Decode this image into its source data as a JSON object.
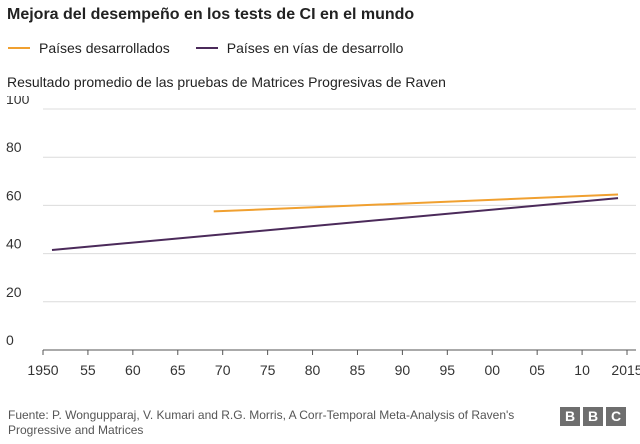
{
  "chart_data": {
    "type": "line",
    "title": "Mejora del desempeño en los tests de CI en el mundo",
    "subtitle": "Resultado promedio de las pruebas de Matrices Progresivas de Raven",
    "xlabel": "",
    "ylabel": "",
    "xlim": [
      1950,
      2016
    ],
    "ylim": [
      0,
      100
    ],
    "x_ticks": [
      1950,
      1955,
      1960,
      1965,
      1970,
      1975,
      1980,
      1985,
      1990,
      1995,
      2000,
      2005,
      2010,
      2015
    ],
    "x_tick_labels": [
      "1950",
      "55",
      "60",
      "65",
      "70",
      "75",
      "80",
      "85",
      "90",
      "95",
      "00",
      "05",
      "10",
      "2015"
    ],
    "y_ticks": [
      0,
      20,
      40,
      60,
      80,
      100
    ],
    "y_tick_labels": [
      "0",
      "20",
      "40",
      "60",
      "80",
      "100"
    ],
    "grid": "horizontal",
    "legend_position": "top-left",
    "series": [
      {
        "name": "Países desarrollados",
        "color": "#f0a030",
        "x": [
          1969,
          2014
        ],
        "values": [
          57.5,
          64.5
        ]
      },
      {
        "name": "Países en vías de desarrollo",
        "color": "#4b2a5a",
        "x": [
          1951,
          2014
        ],
        "values": [
          41.5,
          63
        ]
      }
    ]
  },
  "source": "Fuente: P. Wongupparaj, V. Kumari and R.G. Morris, A Corr-Temporal Meta-Analysis of Raven's Progressive and Matrices",
  "logo": {
    "letters": [
      "B",
      "B",
      "C"
    ],
    "color": "#6e6e6e"
  }
}
